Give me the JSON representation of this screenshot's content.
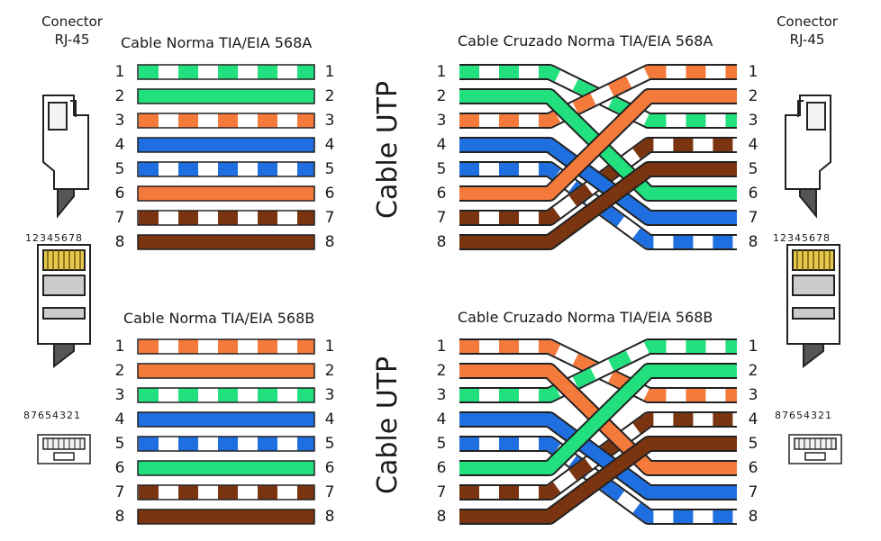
{
  "connector": {
    "label_line1": "Conector",
    "label_line2": "RJ-45",
    "pins_front": "12345678",
    "pins_back": "87654321"
  },
  "cable_utp_label": "Cable UTP",
  "colors": {
    "white": "#ffffff",
    "green": "#22e07e",
    "orange": "#f47a3c",
    "blue": "#1f6fe0",
    "brown": "#7a3410",
    "outline": "#222222"
  },
  "panels": [
    {
      "title": "Cable Norma TIA/EIA 568A",
      "kind": "straight",
      "pins": [
        {
          "n": "1",
          "color": "green",
          "striped": true
        },
        {
          "n": "2",
          "color": "green",
          "striped": false
        },
        {
          "n": "3",
          "color": "orange",
          "striped": true
        },
        {
          "n": "4",
          "color": "blue",
          "striped": false
        },
        {
          "n": "5",
          "color": "blue",
          "striped": true
        },
        {
          "n": "6",
          "color": "orange",
          "striped": false
        },
        {
          "n": "7",
          "color": "brown",
          "striped": true
        },
        {
          "n": "8",
          "color": "brown",
          "striped": false
        }
      ]
    },
    {
      "title": "Cable Cruzado Norma TIA/EIA 568A",
      "kind": "crossed",
      "left": [
        {
          "n": "1",
          "color": "green",
          "striped": true
        },
        {
          "n": "2",
          "color": "green",
          "striped": false
        },
        {
          "n": "3",
          "color": "orange",
          "striped": true
        },
        {
          "n": "4",
          "color": "blue",
          "striped": false
        },
        {
          "n": "5",
          "color": "blue",
          "striped": true
        },
        {
          "n": "6",
          "color": "orange",
          "striped": false
        },
        {
          "n": "7",
          "color": "brown",
          "striped": true
        },
        {
          "n": "8",
          "color": "brown",
          "striped": false
        }
      ],
      "right": [
        {
          "n": "1",
          "color": "orange",
          "striped": true
        },
        {
          "n": "2",
          "color": "orange",
          "striped": false
        },
        {
          "n": "3",
          "color": "green",
          "striped": true
        },
        {
          "n": "4",
          "color": "brown",
          "striped": true
        },
        {
          "n": "5",
          "color": "brown",
          "striped": false
        },
        {
          "n": "6",
          "color": "green",
          "striped": false
        },
        {
          "n": "7",
          "color": "blue",
          "striped": false
        },
        {
          "n": "8",
          "color": "blue",
          "striped": true
        }
      ]
    },
    {
      "title": "Cable Norma TIA/EIA 568B",
      "kind": "straight",
      "pins": [
        {
          "n": "1",
          "color": "orange",
          "striped": true
        },
        {
          "n": "2",
          "color": "orange",
          "striped": false
        },
        {
          "n": "3",
          "color": "green",
          "striped": true
        },
        {
          "n": "4",
          "color": "blue",
          "striped": false
        },
        {
          "n": "5",
          "color": "blue",
          "striped": true
        },
        {
          "n": "6",
          "color": "green",
          "striped": false
        },
        {
          "n": "7",
          "color": "brown",
          "striped": true
        },
        {
          "n": "8",
          "color": "brown",
          "striped": false
        }
      ]
    },
    {
      "title": "Cable Cruzado Norma TIA/EIA 568B",
      "kind": "crossed",
      "left": [
        {
          "n": "1",
          "color": "orange",
          "striped": true
        },
        {
          "n": "2",
          "color": "orange",
          "striped": false
        },
        {
          "n": "3",
          "color": "green",
          "striped": true
        },
        {
          "n": "4",
          "color": "blue",
          "striped": false
        },
        {
          "n": "5",
          "color": "blue",
          "striped": true
        },
        {
          "n": "6",
          "color": "green",
          "striped": false
        },
        {
          "n": "7",
          "color": "brown",
          "striped": true
        },
        {
          "n": "8",
          "color": "brown",
          "striped": false
        }
      ],
      "right": [
        {
          "n": "1",
          "color": "green",
          "striped": true
        },
        {
          "n": "2",
          "color": "green",
          "striped": false
        },
        {
          "n": "3",
          "color": "orange",
          "striped": true
        },
        {
          "n": "4",
          "color": "brown",
          "striped": true
        },
        {
          "n": "5",
          "color": "brown",
          "striped": false
        },
        {
          "n": "6",
          "color": "orange",
          "striped": false
        },
        {
          "n": "7",
          "color": "blue",
          "striped": false
        },
        {
          "n": "8",
          "color": "blue",
          "striped": true
        }
      ]
    }
  ]
}
